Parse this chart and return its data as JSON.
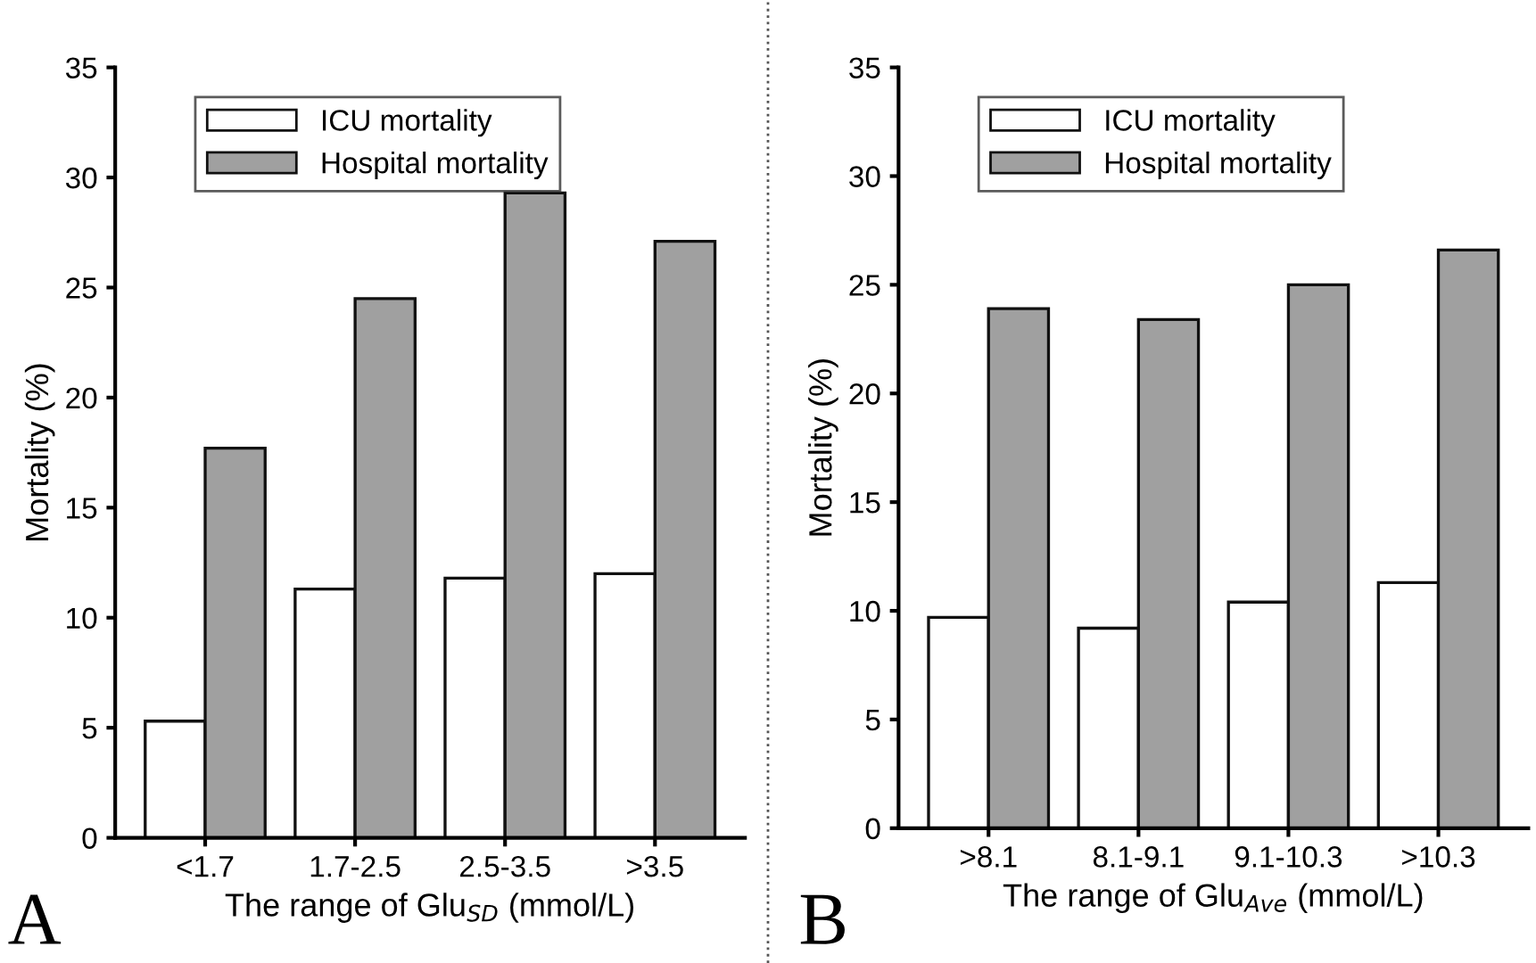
{
  "chart_data": [
    {
      "type": "bar",
      "xlabel": "The range of Glu$_{SD}$ (mmol/L)",
      "ylabel": "Mortality (%)",
      "categories": [
        "<1.7",
        "1.7-2.5",
        "2.5-3.5",
        ">3.5"
      ],
      "series": [
        {
          "name": "ICU mortality",
          "color": "#ffffff",
          "values": [
            5.3,
            11.3,
            11.8,
            12.0
          ]
        },
        {
          "name": "Hospital mortality",
          "color": "#a0a0a0",
          "values": [
            17.7,
            24.5,
            29.3,
            27.1
          ]
        }
      ],
      "ylim": [
        0,
        35
      ],
      "yticks": [
        0,
        5,
        10,
        15,
        20,
        25,
        30,
        35
      ],
      "legend": "top left",
      "grid": false,
      "annotations": [
        "A"
      ]
    },
    {
      "type": "bar",
      "xlabel": "The range of Glu$_{Ave}$ (mmol/L)",
      "ylabel": "Mortality (%)",
      "categories": [
        ">8.1",
        "8.1-9.1",
        "9.1-10.3",
        ">10.3"
      ],
      "series": [
        {
          "name": "ICU mortality",
          "color": "#ffffff",
          "values": [
            9.7,
            9.2,
            10.4,
            11.3
          ]
        },
        {
          "name": "Hospital mortality",
          "color": "#a0a0a0",
          "values": [
            23.9,
            23.4,
            25.0,
            26.6
          ]
        }
      ],
      "ylim": [
        0,
        35
      ],
      "yticks": [
        0,
        5,
        10,
        15,
        20,
        25,
        30,
        35
      ],
      "legend": "top left",
      "grid": false,
      "annotations": [
        "B"
      ]
    }
  ]
}
